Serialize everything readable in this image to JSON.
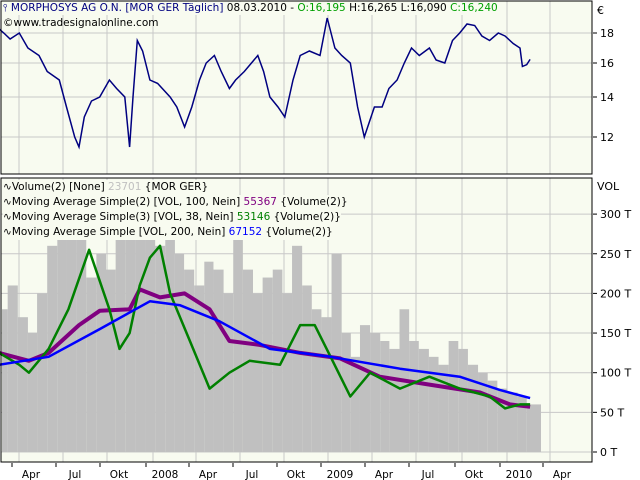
{
  "header": {
    "symbol_icon": "bar-chart-icon",
    "name": "MORPHOSYS AG O.N.",
    "bracket": "[MOR GER  Täglich]",
    "date": "08.03.2010",
    "dash": "-",
    "open": "O:16,195",
    "high": "H:16,265",
    "low": "L:16,090",
    "close": "C:16,240"
  },
  "watermark": "©www.tradesignalonline.com",
  "colors": {
    "price": "#000080",
    "background": "#f8fbf0",
    "grid": "#c8c8c8",
    "volume": "#c0c0c0",
    "ma100": "#800080",
    "ma38": "#008000",
    "ma200": "#0000ff",
    "open_text": "#00a000"
  },
  "legend": [
    {
      "icon": "indicator-wave-icon",
      "label": "Volume(2) [None]",
      "value": "23701",
      "value_color": "#c0c0c0",
      "suffix": "{MOR GER}"
    },
    {
      "icon": "indicator-wave-icon",
      "label": "Moving Average Simple(2) [VOL, 100, Nein]",
      "value": "55367",
      "value_color": "#800080",
      "suffix": "{Volume(2)}"
    },
    {
      "icon": "indicator-wave-icon",
      "label": "Moving Average Simple(3) [VOL, 38, Nein]",
      "value": "53146",
      "value_color": "#008000",
      "suffix": "{Volume(2)}"
    },
    {
      "icon": "indicator-wave-icon",
      "label": "Moving Average Simple [VOL, 200, Nein]",
      "value": "67152",
      "value_color": "#0000ff",
      "suffix": "{Volume(2)}"
    }
  ],
  "chart_data": [
    {
      "type": "line",
      "title": "",
      "ylabel": "€",
      "y_ticks": [
        "18",
        "16",
        "14",
        "12"
      ],
      "ylim": [
        10.3,
        20
      ],
      "grid": true,
      "x_range": [
        "2007-03-01",
        "2010-05-15"
      ],
      "series": [
        {
          "values": [
            [
              "2007-03-01",
              18.3
            ],
            [
              "2007-03-12",
              18
            ],
            [
              "2007-03-25",
              17.6
            ],
            [
              "2007-04-13",
              18
            ],
            [
              "2007-05-01",
              17
            ],
            [
              "2007-05-24",
              16.5
            ],
            [
              "2007-06-10",
              15.5
            ],
            [
              "2007-07-05",
              15
            ],
            [
              "2007-07-20",
              13.5
            ],
            [
              "2007-08-06",
              12
            ],
            [
              "2007-08-15",
              11.5
            ],
            [
              "2007-08-26",
              13
            ],
            [
              "2007-09-10",
              13.8
            ],
            [
              "2007-09-27",
              14
            ],
            [
              "2007-10-17",
              15
            ],
            [
              "2007-11-01",
              14.5
            ],
            [
              "2007-11-18",
              14
            ],
            [
              "2007-11-28",
              11.5
            ],
            [
              "2007-12-05",
              14
            ],
            [
              "2007-12-14",
              17.5
            ],
            [
              "2007-12-25",
              16.8
            ],
            [
              "2008-01-09",
              15
            ],
            [
              "2008-01-25",
              14.8
            ],
            [
              "2008-02-20",
              14
            ],
            [
              "2008-03-05",
              13.5
            ],
            [
              "2008-03-21",
              12.5
            ],
            [
              "2008-04-05",
              13.5
            ],
            [
              "2008-04-21",
              15
            ],
            [
              "2008-05-05",
              16
            ],
            [
              "2008-05-22",
              16.5
            ],
            [
              "2008-06-05",
              15.5
            ],
            [
              "2008-06-22",
              14.5
            ],
            [
              "2008-07-05",
              15
            ],
            [
              "2008-07-23",
              15.5
            ],
            [
              "2008-08-20",
              16.5
            ],
            [
              "2008-09-01",
              15.5
            ],
            [
              "2008-09-14",
              14
            ],
            [
              "2008-10-01",
              13.5
            ],
            [
              "2008-10-15",
              13
            ],
            [
              "2008-11-01",
              15
            ],
            [
              "2008-11-16",
              16.5
            ],
            [
              "2008-12-05",
              16.8
            ],
            [
              "2008-12-27",
              16.5
            ],
            [
              "2009-01-11",
              19
            ],
            [
              "2009-01-27",
              17
            ],
            [
              "2009-02-10",
              16.5
            ],
            [
              "2009-02-28",
              16
            ],
            [
              "2009-03-15",
              13.5
            ],
            [
              "2009-03-29",
              12
            ],
            [
              "2009-04-19",
              13.5
            ],
            [
              "2009-05-05",
              13.5
            ],
            [
              "2009-05-19",
              14.5
            ],
            [
              "2009-06-05",
              15
            ],
            [
              "2009-06-20",
              16
            ],
            [
              "2009-07-05",
              17
            ],
            [
              "2009-07-21",
              16.5
            ],
            [
              "2009-08-11",
              17
            ],
            [
              "2009-08-25",
              16.2
            ],
            [
              "2009-09-12",
              16
            ],
            [
              "2009-09-28",
              17.5
            ],
            [
              "2009-10-13",
              18
            ],
            [
              "2009-10-28",
              18.6
            ],
            [
              "2009-11-13",
              18.5
            ],
            [
              "2009-11-28",
              17.8
            ],
            [
              "2009-12-14",
              17.5
            ],
            [
              "2010-01-01",
              18
            ],
            [
              "2010-01-15",
              17.8
            ],
            [
              "2010-02-01",
              17.3
            ],
            [
              "2010-02-15",
              17
            ],
            [
              "2010-02-20",
              15.8
            ],
            [
              "2010-03-01",
              15.9
            ],
            [
              "2010-03-08",
              16.24
            ]
          ]
        }
      ]
    },
    {
      "type": "line",
      "title": "",
      "ylabel": "VOL",
      "y_ticks": [
        "300 T",
        "250 T",
        "200 T",
        "150 T",
        "100 T",
        "50 T",
        "0 T"
      ],
      "ylim": [
        0,
        330
      ],
      "grid": true,
      "x_ticks": [
        "Apr",
        "Jul",
        "Okt",
        "2008",
        "Apr",
        "Jul",
        "Okt",
        "2009",
        "Apr",
        "Jul",
        "Okt",
        "2010",
        "Apr"
      ],
      "volume_bars": [
        [
          "2007-03-01",
          180
        ],
        [
          "2007-03-20",
          210
        ],
        [
          "2007-04-10",
          170
        ],
        [
          "2007-05-01",
          150
        ],
        [
          "2007-05-20",
          200
        ],
        [
          "2007-06-10",
          260
        ],
        [
          "2007-07-01",
          290
        ],
        [
          "2007-07-20",
          300
        ],
        [
          "2007-08-10",
          270
        ],
        [
          "2007-08-30",
          220
        ],
        [
          "2007-09-20",
          250
        ],
        [
          "2007-10-10",
          230
        ],
        [
          "2007-10-30",
          290
        ],
        [
          "2007-11-20",
          280
        ],
        [
          "2007-12-10",
          300
        ],
        [
          "2007-12-30",
          310
        ],
        [
          "2008-01-20",
          260
        ],
        [
          "2008-02-10",
          280
        ],
        [
          "2008-03-01",
          250
        ],
        [
          "2008-03-20",
          230
        ],
        [
          "2008-04-10",
          210
        ],
        [
          "2008-05-01",
          240
        ],
        [
          "2008-05-20",
          230
        ],
        [
          "2008-06-10",
          200
        ],
        [
          "2008-06-30",
          270
        ],
        [
          "2008-07-20",
          230
        ],
        [
          "2008-08-10",
          200
        ],
        [
          "2008-08-30",
          220
        ],
        [
          "2008-09-20",
          230
        ],
        [
          "2008-10-10",
          200
        ],
        [
          "2008-10-30",
          260
        ],
        [
          "2008-11-20",
          210
        ],
        [
          "2008-12-10",
          180
        ],
        [
          "2008-12-30",
          170
        ],
        [
          "2009-01-20",
          250
        ],
        [
          "2009-02-10",
          150
        ],
        [
          "2009-03-01",
          120
        ],
        [
          "2009-03-20",
          160
        ],
        [
          "2009-04-10",
          150
        ],
        [
          "2009-05-01",
          140
        ],
        [
          "2009-05-20",
          130
        ],
        [
          "2009-06-10",
          180
        ],
        [
          "2009-06-30",
          140
        ],
        [
          "2009-07-20",
          130
        ],
        [
          "2009-08-10",
          120
        ],
        [
          "2009-08-30",
          110
        ],
        [
          "2009-09-20",
          140
        ],
        [
          "2009-10-10",
          130
        ],
        [
          "2009-10-30",
          110
        ],
        [
          "2009-11-20",
          100
        ],
        [
          "2009-12-10",
          90
        ],
        [
          "2009-12-30",
          80
        ],
        [
          "2010-01-20",
          75
        ],
        [
          "2010-02-10",
          70
        ],
        [
          "2010-03-01",
          60
        ]
      ],
      "series": [
        {
          "name": "Moving Average Simple(2) [VOL, 100, Nein]",
          "color": "#800080",
          "values": [
            [
              "2007-03-02",
              125
            ],
            [
              "2007-05-03",
              115
            ],
            [
              "2007-06-13",
              125
            ],
            [
              "2007-08-15",
              160
            ],
            [
              "2007-09-27",
              178
            ],
            [
              "2007-11-28",
              180
            ],
            [
              "2007-12-19",
              205
            ],
            [
              "2008-01-30",
              195
            ],
            [
              "2008-03-21",
              200
            ],
            [
              "2008-05-12",
              180
            ],
            [
              "2008-06-22",
              140
            ],
            [
              "2008-08-24",
              135
            ],
            [
              "2008-11-16",
              125
            ],
            [
              "2009-02-07",
              118
            ],
            [
              "2009-04-30",
              95
            ],
            [
              "2009-08-11",
              85
            ],
            [
              "2009-11-24",
              75
            ],
            [
              "2010-01-25",
              60
            ],
            [
              "2010-03-08",
              57
            ]
          ]
        },
        {
          "name": "Moving Average Simple(3) [VOL, 38, Nein]",
          "color": "#008000",
          "values": [
            [
              "2007-03-02",
              125
            ],
            [
              "2007-04-13",
              110
            ],
            [
              "2007-05-03",
              100
            ],
            [
              "2007-06-13",
              130
            ],
            [
              "2007-07-24",
              180
            ],
            [
              "2007-09-05",
              255
            ],
            [
              "2007-10-17",
              180
            ],
            [
              "2007-11-07",
              130
            ],
            [
              "2007-11-28",
              150
            ],
            [
              "2007-12-19",
              210
            ],
            [
              "2008-01-09",
              245
            ],
            [
              "2008-01-30",
              260
            ],
            [
              "2008-02-20",
              200
            ],
            [
              "2008-04-01",
              140
            ],
            [
              "2008-05-12",
              80
            ],
            [
              "2008-06-22",
              100
            ],
            [
              "2008-08-03",
              115
            ],
            [
              "2008-10-05",
              110
            ],
            [
              "2008-11-16",
              160
            ],
            [
              "2008-12-16",
              160
            ],
            [
              "2009-01-18",
              120
            ],
            [
              "2009-02-28",
              70
            ],
            [
              "2009-04-10",
              100
            ],
            [
              "2009-06-11",
              80
            ],
            [
              "2009-08-11",
              95
            ],
            [
              "2009-10-13",
              80
            ],
            [
              "2009-12-14",
              70
            ],
            [
              "2010-01-15",
              55
            ],
            [
              "2010-02-15",
              60
            ],
            [
              "2010-03-08",
              60
            ]
          ]
        },
        {
          "name": "Moving Average Simple [VOL, 200, Nein]",
          "color": "#0000ff",
          "values": [
            [
              "2007-03-02",
              110
            ],
            [
              "2007-06-13",
              120
            ],
            [
              "2007-09-27",
              155
            ],
            [
              "2008-01-09",
              190
            ],
            [
              "2008-03-12",
              185
            ],
            [
              "2008-06-01",
              165
            ],
            [
              "2008-09-14",
              130
            ],
            [
              "2009-01-18",
              120
            ],
            [
              "2009-06-11",
              105
            ],
            [
              "2009-10-13",
              95
            ],
            [
              "2010-01-05",
              78
            ],
            [
              "2010-03-08",
              68
            ]
          ]
        }
      ]
    }
  ]
}
